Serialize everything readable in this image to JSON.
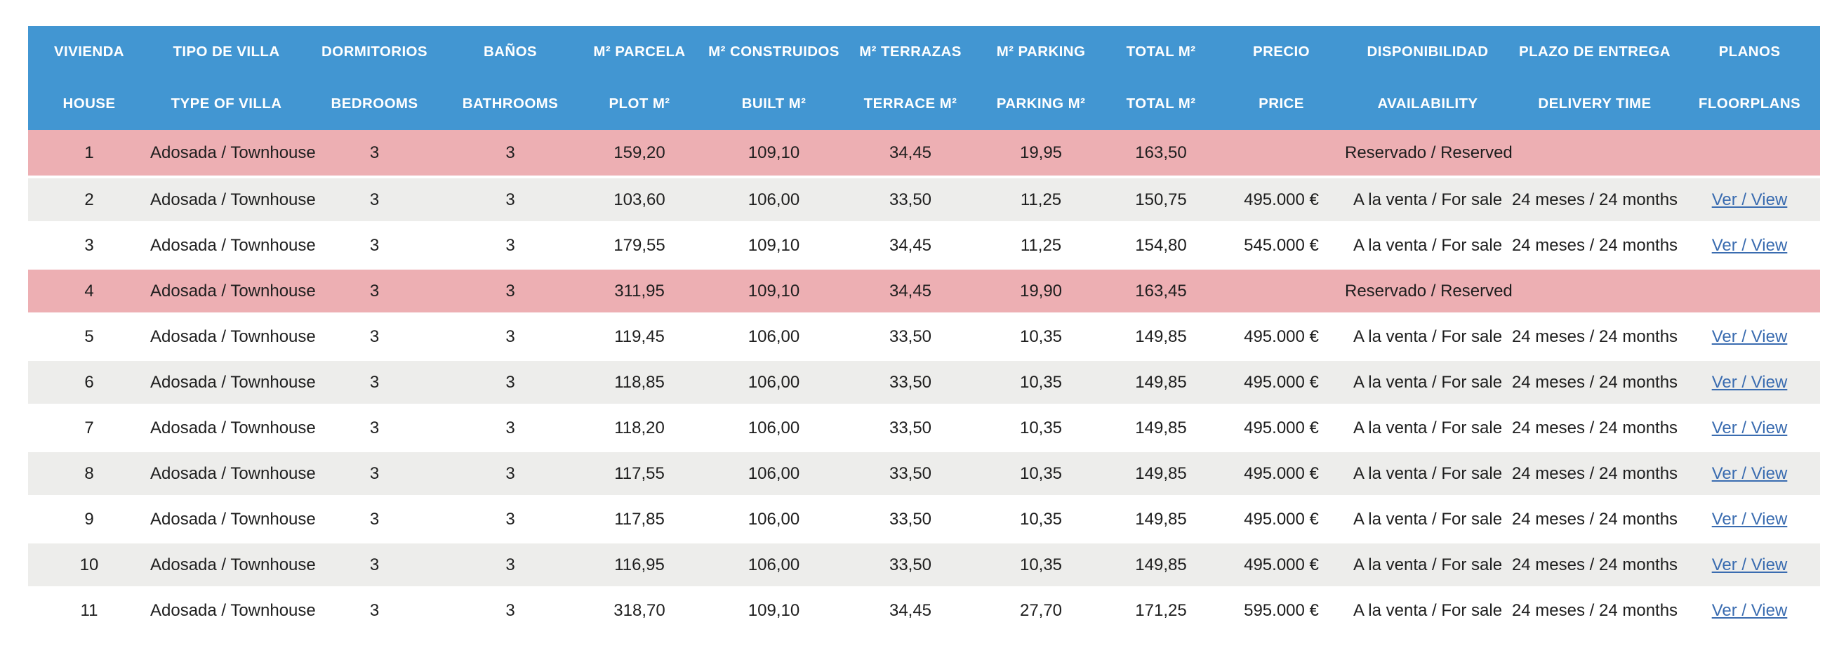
{
  "colors": {
    "header_bg": "#4296D2",
    "header_text": "#FFFFFF",
    "reserved_row_bg": "#EDAFB3",
    "zebra_row_bg": "#EDEDEB",
    "white_row_bg": "#FFFFFF",
    "body_text": "#1E1E1E",
    "link_color": "#3A6CB0"
  },
  "table": {
    "header": {
      "columns": [
        {
          "id": "house",
          "es": "VIVIENDA",
          "en": "HOUSE"
        },
        {
          "id": "type",
          "es": "TIPO DE VILLA",
          "en": "TYPE OF VILLA"
        },
        {
          "id": "bedrooms",
          "es": "DORMITORIOS",
          "en": "BEDROOMS"
        },
        {
          "id": "bathrooms",
          "es": "BAÑOS",
          "en": "BATHROOMS"
        },
        {
          "id": "plot",
          "es": "M² PARCELA",
          "en": "PLOT M²"
        },
        {
          "id": "built",
          "es": "M² CONSTRUIDOS",
          "en": "BUILT M²"
        },
        {
          "id": "terrace",
          "es": "M² TERRAZAS",
          "en": "TERRACE M²"
        },
        {
          "id": "parking",
          "es": "M² PARKING",
          "en": "PARKING M²"
        },
        {
          "id": "total",
          "es": "TOTAL M²",
          "en": "TOTAL M²"
        },
        {
          "id": "price",
          "es": "PRECIO",
          "en": "PRICE"
        },
        {
          "id": "availability",
          "es": "DISPONIBILIDAD",
          "en": "AVAILABILITY"
        },
        {
          "id": "delivery",
          "es": "PLAZO DE ENTREGA",
          "en": "DELIVERY TIME"
        },
        {
          "id": "plans",
          "es": "PLANOS",
          "en": "FLOORPLANS"
        }
      ]
    },
    "rows": [
      {
        "house": "1",
        "type": "Adosada / Townhouse",
        "bedrooms": "3",
        "bathrooms": "3",
        "plot": "159,20",
        "built": "109,10",
        "terrace": "34,45",
        "parking": "19,95",
        "total": "163,50",
        "price": "",
        "availability": "Reservado / Reserved",
        "delivery": "",
        "plans": "",
        "shade": "reserved"
      },
      {
        "house": "2",
        "type": "Adosada / Townhouse",
        "bedrooms": "3",
        "bathrooms": "3",
        "plot": "103,60",
        "built": "106,00",
        "terrace": "33,50",
        "parking": "11,25",
        "total": "150,75",
        "price": "495.000 €",
        "availability": "A la venta / For sale",
        "delivery": "24 meses / 24 months",
        "plans": "Ver / View",
        "shade": "gray"
      },
      {
        "house": "3",
        "type": "Adosada / Townhouse",
        "bedrooms": "3",
        "bathrooms": "3",
        "plot": "179,55",
        "built": "109,10",
        "terrace": "34,45",
        "parking": "11,25",
        "total": "154,80",
        "price": "545.000 €",
        "availability": "A la venta / For sale",
        "delivery": "24 meses / 24 months",
        "plans": "Ver / View",
        "shade": "white"
      },
      {
        "house": "4",
        "type": "Adosada / Townhouse",
        "bedrooms": "3",
        "bathrooms": "3",
        "plot": "311,95",
        "built": "109,10",
        "terrace": "34,45",
        "parking": "19,90",
        "total": "163,45",
        "price": "",
        "availability": "Reservado / Reserved",
        "delivery": "",
        "plans": "",
        "shade": "reserved"
      },
      {
        "house": "5",
        "type": "Adosada / Townhouse",
        "bedrooms": "3",
        "bathrooms": "3",
        "plot": "119,45",
        "built": "106,00",
        "terrace": "33,50",
        "parking": "10,35",
        "total": "149,85",
        "price": "495.000 €",
        "availability": "A la venta / For sale",
        "delivery": "24 meses / 24 months",
        "plans": "Ver / View",
        "shade": "white"
      },
      {
        "house": "6",
        "type": "Adosada / Townhouse",
        "bedrooms": "3",
        "bathrooms": "3",
        "plot": "118,85",
        "built": "106,00",
        "terrace": "33,50",
        "parking": "10,35",
        "total": "149,85",
        "price": "495.000 €",
        "availability": "A la venta / For sale",
        "delivery": "24 meses / 24 months",
        "plans": "Ver / View",
        "shade": "gray"
      },
      {
        "house": "7",
        "type": "Adosada / Townhouse",
        "bedrooms": "3",
        "bathrooms": "3",
        "plot": "118,20",
        "built": "106,00",
        "terrace": "33,50",
        "parking": "10,35",
        "total": "149,85",
        "price": "495.000 €",
        "availability": "A la venta / For sale",
        "delivery": "24 meses / 24 months",
        "plans": "Ver / View",
        "shade": "white"
      },
      {
        "house": "8",
        "type": "Adosada / Townhouse",
        "bedrooms": "3",
        "bathrooms": "3",
        "plot": "117,55",
        "built": "106,00",
        "terrace": "33,50",
        "parking": "10,35",
        "total": "149,85",
        "price": "495.000 €",
        "availability": "A la venta / For sale",
        "delivery": "24 meses / 24 months",
        "plans": "Ver / View",
        "shade": "gray"
      },
      {
        "house": "9",
        "type": "Adosada / Townhouse",
        "bedrooms": "3",
        "bathrooms": "3",
        "plot": "117,85",
        "built": "106,00",
        "terrace": "33,50",
        "parking": "10,35",
        "total": "149,85",
        "price": "495.000 €",
        "availability": "A la venta / For sale",
        "delivery": "24 meses / 24 months",
        "plans": "Ver / View",
        "shade": "white"
      },
      {
        "house": "10",
        "type": "Adosada / Townhouse",
        "bedrooms": "3",
        "bathrooms": "3",
        "plot": "116,95",
        "built": "106,00",
        "terrace": "33,50",
        "parking": "10,35",
        "total": "149,85",
        "price": "495.000 €",
        "availability": "A la venta / For sale",
        "delivery": "24 meses / 24 months",
        "plans": "Ver / View",
        "shade": "gray"
      },
      {
        "house": "11",
        "type": "Adosada / Townhouse",
        "bedrooms": "3",
        "bathrooms": "3",
        "plot": "318,70",
        "built": "109,10",
        "terrace": "34,45",
        "parking": "27,70",
        "total": "171,25",
        "price": "595.000 €",
        "availability": "A la venta / For sale",
        "delivery": "24 meses / 24 months",
        "plans": "Ver / View",
        "shade": "white"
      }
    ]
  }
}
